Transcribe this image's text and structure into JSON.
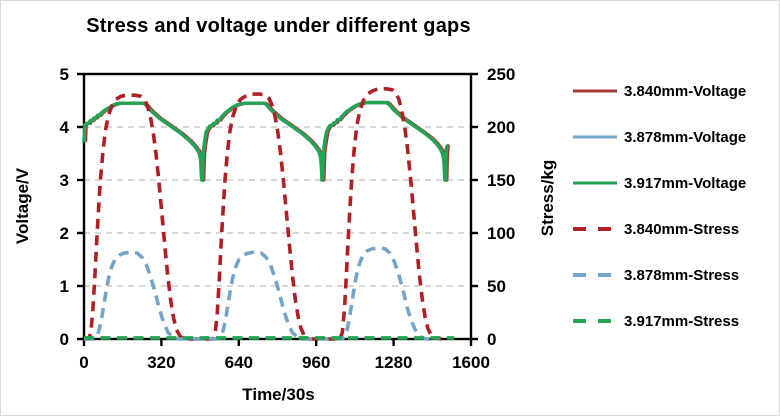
{
  "title": "Stress and voltage under different gaps",
  "colors": {
    "dark_red_voltage": "#9E3A36",
    "blue_series": "#74A5C8",
    "green_series": "#23A454",
    "red_stress": "#B01F24",
    "gridline": "#cccccc",
    "axis": "#000000",
    "text": "#000000"
  },
  "chart_data": {
    "type": "line",
    "title": "Stress and voltage under different gaps",
    "xlabel": "Time/30s",
    "ylabel_left": "Voltage/V",
    "ylabel_right": "Stress/kg",
    "xlim": [
      0,
      1600
    ],
    "ylim_left": [
      0,
      5
    ],
    "ylim_right": [
      0,
      250
    ],
    "x_ticks": [
      0,
      320,
      640,
      960,
      1280,
      1600
    ],
    "y_left_ticks": [
      0,
      1,
      2,
      3,
      4,
      5
    ],
    "y_right_ticks": [
      0,
      50,
      100,
      150,
      200,
      250
    ],
    "grid": "horizontal dashed at left-axis 1,2,3,4",
    "legend_position": "right",
    "series": [
      {
        "name": "3.840mm-Voltage",
        "axis": "left",
        "style": "solid",
        "color": "#9E3A36",
        "note": "nearly identical to 3.917mm-Voltage curve; hidden behind it except thin slivers at the vertical drops",
        "same_as": "3.917mm-Voltage",
        "t_offset": 6
      },
      {
        "name": "3.878mm-Voltage",
        "axis": "left",
        "style": "solid",
        "color": "#74A5C8",
        "note": "fully hidden behind 3.917mm-Voltage curve",
        "same_as": "3.917mm-Voltage",
        "t_offset": 0
      },
      {
        "name": "3.917mm-Voltage",
        "axis": "left",
        "style": "solid",
        "color": "#23A454",
        "points": [
          [
            0,
            3.72
          ],
          [
            3,
            4.04
          ],
          [
            12,
            4.07
          ],
          [
            20,
            4.07
          ],
          [
            26,
            4.12
          ],
          [
            34,
            4.12
          ],
          [
            41,
            4.17
          ],
          [
            49,
            4.17
          ],
          [
            56,
            4.22
          ],
          [
            63,
            4.22
          ],
          [
            71,
            4.26
          ],
          [
            81,
            4.3
          ],
          [
            91,
            4.33
          ],
          [
            102,
            4.36
          ],
          [
            113,
            4.39
          ],
          [
            124,
            4.42
          ],
          [
            137,
            4.44
          ],
          [
            152,
            4.45
          ],
          [
            245,
            4.45
          ],
          [
            253,
            4.43
          ],
          [
            263,
            4.38
          ],
          [
            276,
            4.31
          ],
          [
            293,
            4.24
          ],
          [
            313,
            4.16
          ],
          [
            335,
            4.09
          ],
          [
            357,
            4.02
          ],
          [
            379,
            3.95
          ],
          [
            401,
            3.88
          ],
          [
            421,
            3.8
          ],
          [
            439,
            3.73
          ],
          [
            453,
            3.66
          ],
          [
            463,
            3.6
          ],
          [
            471,
            3.55
          ],
          [
            478,
            3.48
          ],
          [
            483,
            3.35
          ],
          [
            485,
            3.1
          ],
          [
            487,
            3.0
          ],
          [
            489,
            3.0
          ],
          [
            491,
            3.32
          ],
          [
            493,
            3.52
          ],
          [
            496,
            3.64
          ],
          [
            500,
            3.76
          ],
          [
            505,
            3.9
          ],
          [
            513,
            3.97
          ],
          [
            521,
            4.02
          ],
          [
            529,
            4.02
          ],
          [
            536,
            4.07
          ],
          [
            544,
            4.07
          ],
          [
            551,
            4.13
          ],
          [
            559,
            4.13
          ],
          [
            567,
            4.18
          ],
          [
            575,
            4.22
          ],
          [
            585,
            4.27
          ],
          [
            596,
            4.31
          ],
          [
            608,
            4.35
          ],
          [
            621,
            4.39
          ],
          [
            636,
            4.42
          ],
          [
            652,
            4.44
          ],
          [
            668,
            4.45
          ],
          [
            742,
            4.45
          ],
          [
            752,
            4.43
          ],
          [
            762,
            4.38
          ],
          [
            776,
            4.31
          ],
          [
            793,
            4.24
          ],
          [
            813,
            4.16
          ],
          [
            835,
            4.09
          ],
          [
            857,
            4.02
          ],
          [
            879,
            3.95
          ],
          [
            901,
            3.88
          ],
          [
            919,
            3.81
          ],
          [
            936,
            3.74
          ],
          [
            950,
            3.67
          ],
          [
            960,
            3.61
          ],
          [
            968,
            3.56
          ],
          [
            974,
            3.5
          ],
          [
            979,
            3.4
          ],
          [
            982,
            3.2
          ],
          [
            984,
            3.0
          ],
          [
            986,
            3.0
          ],
          [
            988,
            3.32
          ],
          [
            990,
            3.52
          ],
          [
            993,
            3.64
          ],
          [
            997,
            3.76
          ],
          [
            1002,
            3.9
          ],
          [
            1010,
            3.98
          ],
          [
            1018,
            4.03
          ],
          [
            1026,
            4.03
          ],
          [
            1033,
            4.08
          ],
          [
            1041,
            4.08
          ],
          [
            1048,
            4.14
          ],
          [
            1056,
            4.14
          ],
          [
            1064,
            4.19
          ],
          [
            1073,
            4.23
          ],
          [
            1083,
            4.28
          ],
          [
            1095,
            4.32
          ],
          [
            1108,
            4.36
          ],
          [
            1122,
            4.4
          ],
          [
            1137,
            4.43
          ],
          [
            1153,
            4.45
          ],
          [
            1170,
            4.46
          ],
          [
            1250,
            4.46
          ],
          [
            1258,
            4.44
          ],
          [
            1268,
            4.39
          ],
          [
            1281,
            4.32
          ],
          [
            1298,
            4.25
          ],
          [
            1318,
            4.17
          ],
          [
            1340,
            4.1
          ],
          [
            1362,
            4.03
          ],
          [
            1384,
            3.96
          ],
          [
            1406,
            3.89
          ],
          [
            1426,
            3.82
          ],
          [
            1444,
            3.75
          ],
          [
            1458,
            3.68
          ],
          [
            1468,
            3.62
          ],
          [
            1476,
            3.56
          ],
          [
            1482,
            3.5
          ],
          [
            1487,
            3.4
          ],
          [
            1490,
            3.18
          ],
          [
            1492,
            3.0
          ],
          [
            1494,
            3.0
          ],
          [
            1496,
            3.4
          ],
          [
            1498,
            3.58
          ],
          [
            1501,
            3.64
          ],
          [
            1506,
            3.65
          ]
        ]
      },
      {
        "name": "3.840mm-Stress",
        "axis": "right",
        "style": "dashed",
        "color": "#B01F24",
        "points": [
          [
            0,
            0
          ],
          [
            20,
            0
          ],
          [
            28,
            6
          ],
          [
            36,
            25
          ],
          [
            44,
            55
          ],
          [
            52,
            90
          ],
          [
            60,
            122
          ],
          [
            68,
            150
          ],
          [
            78,
            176
          ],
          [
            88,
            196
          ],
          [
            100,
            210
          ],
          [
            115,
            220
          ],
          [
            132,
            226
          ],
          [
            152,
            229
          ],
          [
            175,
            230
          ],
          [
            212,
            230
          ],
          [
            235,
            229
          ],
          [
            250,
            226
          ],
          [
            262,
            220
          ],
          [
            274,
            210
          ],
          [
            286,
            195
          ],
          [
            298,
            174
          ],
          [
            310,
            148
          ],
          [
            322,
            118
          ],
          [
            334,
            88
          ],
          [
            346,
            60
          ],
          [
            358,
            37
          ],
          [
            370,
            20
          ],
          [
            382,
            9
          ],
          [
            396,
            3
          ],
          [
            412,
            0
          ],
          [
            533,
            0
          ],
          [
            543,
            6
          ],
          [
            551,
            25
          ],
          [
            559,
            55
          ],
          [
            567,
            90
          ],
          [
            575,
            122
          ],
          [
            583,
            150
          ],
          [
            593,
            176
          ],
          [
            603,
            196
          ],
          [
            615,
            210
          ],
          [
            630,
            220
          ],
          [
            647,
            226
          ],
          [
            667,
            229
          ],
          [
            690,
            231
          ],
          [
            727,
            231
          ],
          [
            750,
            230
          ],
          [
            765,
            227
          ],
          [
            777,
            221
          ],
          [
            789,
            211
          ],
          [
            801,
            196
          ],
          [
            813,
            175
          ],
          [
            825,
            149
          ],
          [
            837,
            119
          ],
          [
            849,
            89
          ],
          [
            861,
            61
          ],
          [
            873,
            38
          ],
          [
            885,
            21
          ],
          [
            897,
            10
          ],
          [
            911,
            3
          ],
          [
            927,
            0
          ],
          [
            1058,
            0
          ],
          [
            1068,
            6
          ],
          [
            1076,
            26
          ],
          [
            1084,
            57
          ],
          [
            1092,
            93
          ],
          [
            1100,
            126
          ],
          [
            1108,
            154
          ],
          [
            1118,
            181
          ],
          [
            1128,
            201
          ],
          [
            1140,
            215
          ],
          [
            1155,
            225
          ],
          [
            1172,
            231
          ],
          [
            1192,
            234
          ],
          [
            1215,
            236
          ],
          [
            1252,
            236
          ],
          [
            1275,
            235
          ],
          [
            1290,
            232
          ],
          [
            1302,
            226
          ],
          [
            1314,
            215
          ],
          [
            1326,
            200
          ],
          [
            1338,
            179
          ],
          [
            1350,
            152
          ],
          [
            1362,
            122
          ],
          [
            1374,
            91
          ],
          [
            1386,
            62
          ],
          [
            1398,
            39
          ],
          [
            1410,
            21
          ],
          [
            1422,
            10
          ],
          [
            1436,
            3
          ],
          [
            1455,
            1
          ],
          [
            1478,
            0
          ]
        ]
      },
      {
        "name": "3.878mm-Stress",
        "axis": "right",
        "style": "dashed",
        "color": "#74A5C8",
        "points": [
          [
            0,
            0
          ],
          [
            40,
            0
          ],
          [
            52,
            2
          ],
          [
            62,
            8
          ],
          [
            72,
            18
          ],
          [
            82,
            32
          ],
          [
            92,
            46
          ],
          [
            102,
            58
          ],
          [
            114,
            68
          ],
          [
            128,
            75
          ],
          [
            145,
            79
          ],
          [
            165,
            81
          ],
          [
            195,
            82
          ],
          [
            220,
            81
          ],
          [
            240,
            77
          ],
          [
            258,
            70
          ],
          [
            276,
            58
          ],
          [
            294,
            44
          ],
          [
            312,
            28
          ],
          [
            330,
            15
          ],
          [
            348,
            6
          ],
          [
            368,
            2
          ],
          [
            390,
            0
          ],
          [
            553,
            0
          ],
          [
            565,
            2
          ],
          [
            575,
            8
          ],
          [
            585,
            18
          ],
          [
            595,
            32
          ],
          [
            605,
            46
          ],
          [
            615,
            58
          ],
          [
            627,
            68
          ],
          [
            641,
            75
          ],
          [
            658,
            79
          ],
          [
            678,
            81
          ],
          [
            708,
            82
          ],
          [
            733,
            81
          ],
          [
            753,
            77
          ],
          [
            771,
            70
          ],
          [
            789,
            58
          ],
          [
            807,
            44
          ],
          [
            825,
            28
          ],
          [
            843,
            15
          ],
          [
            861,
            6
          ],
          [
            881,
            2
          ],
          [
            903,
            0
          ],
          [
            1065,
            0
          ],
          [
            1077,
            2
          ],
          [
            1087,
            8
          ],
          [
            1097,
            19
          ],
          [
            1107,
            34
          ],
          [
            1117,
            48
          ],
          [
            1127,
            61
          ],
          [
            1139,
            71
          ],
          [
            1153,
            79
          ],
          [
            1170,
            83
          ],
          [
            1190,
            85
          ],
          [
            1220,
            86
          ],
          [
            1245,
            85
          ],
          [
            1265,
            81
          ],
          [
            1283,
            73
          ],
          [
            1301,
            61
          ],
          [
            1319,
            46
          ],
          [
            1337,
            29
          ],
          [
            1355,
            16
          ],
          [
            1373,
            7
          ],
          [
            1393,
            2
          ],
          [
            1415,
            0
          ],
          [
            1460,
            0
          ]
        ]
      },
      {
        "name": "3.917mm-Stress",
        "axis": "right",
        "style": "dashed",
        "color": "#23A454",
        "points": [
          [
            0,
            1
          ],
          [
            1530,
            1
          ]
        ]
      }
    ]
  }
}
